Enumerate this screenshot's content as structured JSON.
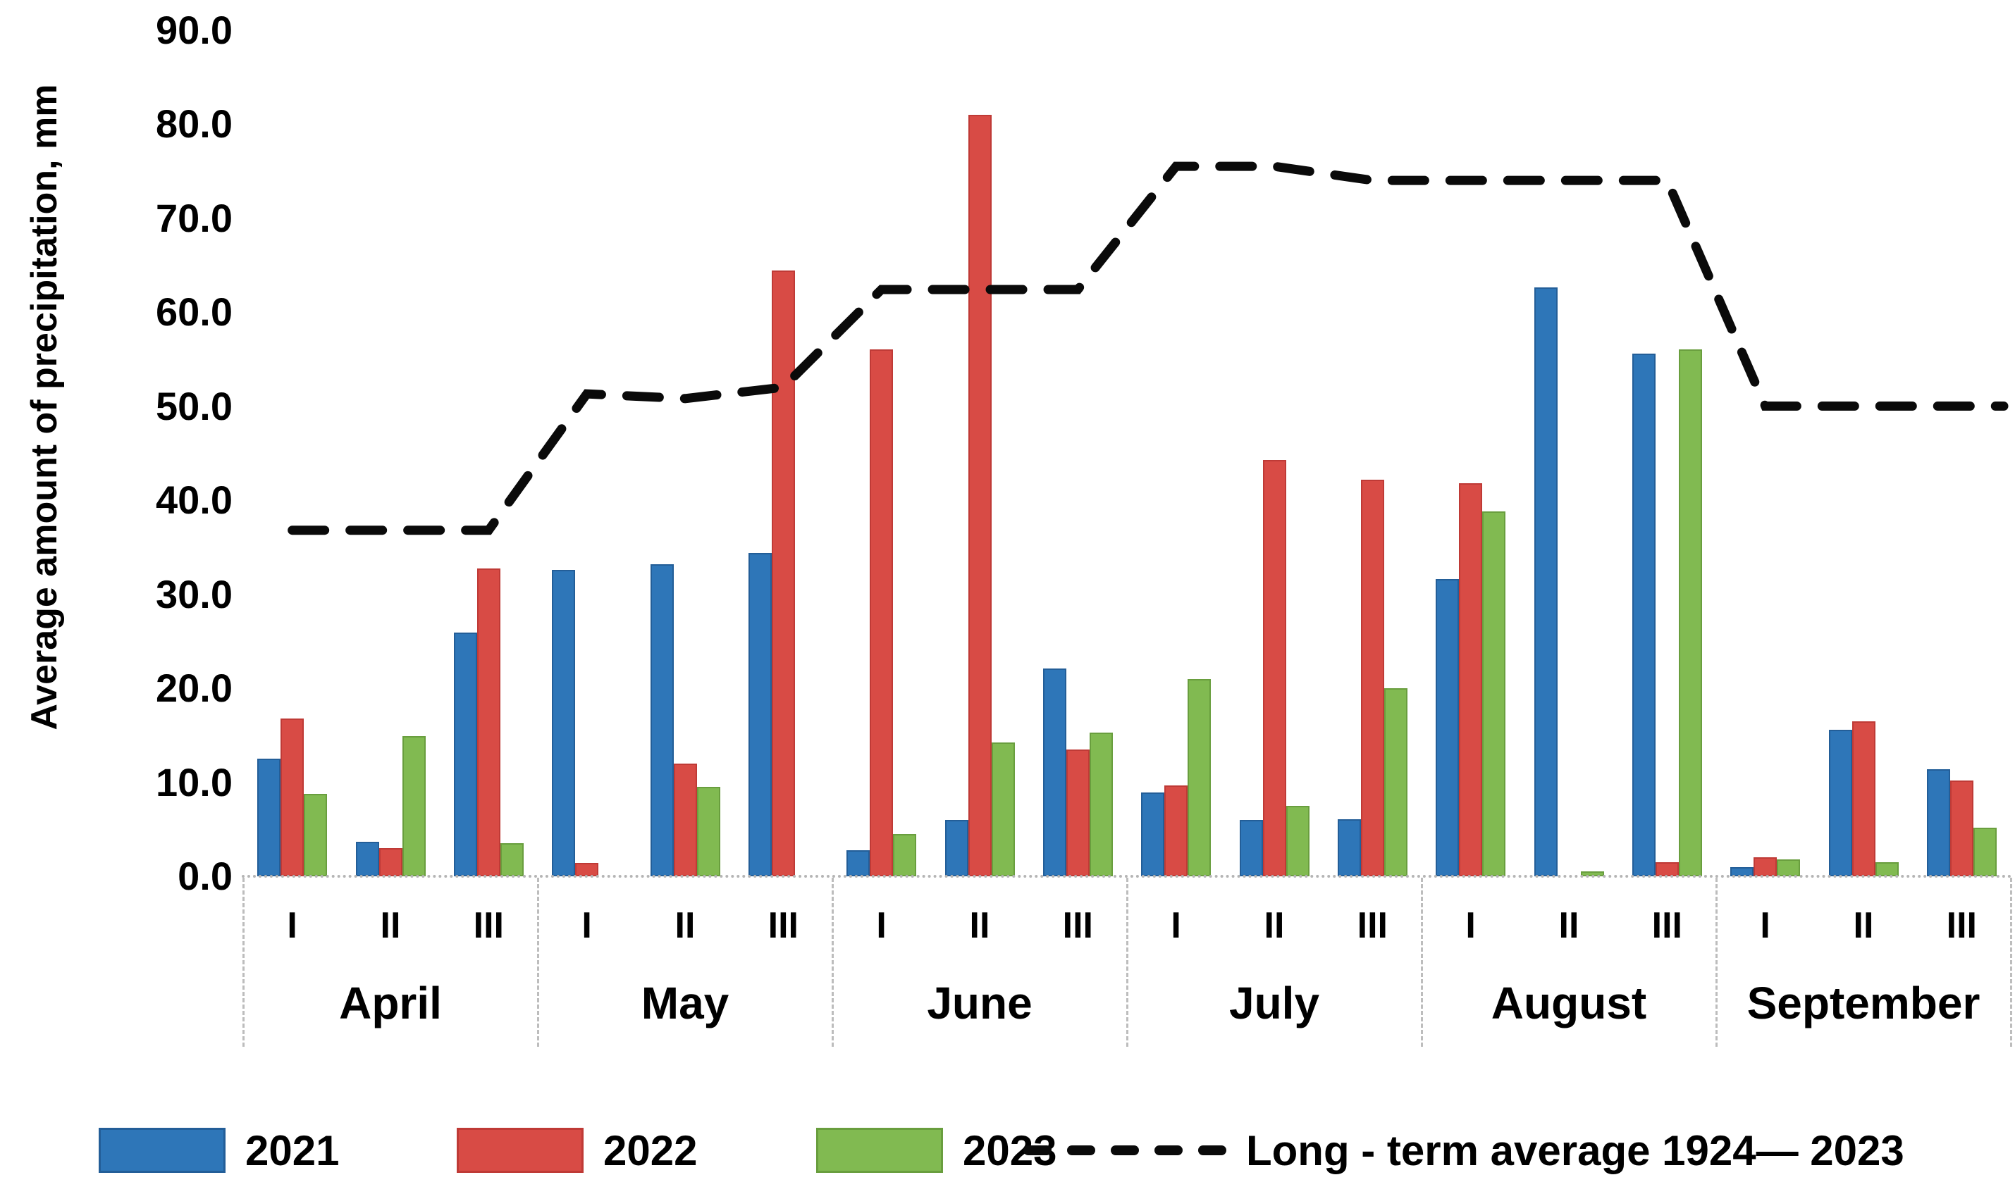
{
  "chart_data": {
    "type": "bar+line",
    "title": "",
    "ylabel": "Average amount of precipitation, mm",
    "ylim": [
      0,
      90
    ],
    "ytick_step": 10,
    "yticks": [
      "90.0",
      "80.0",
      "70.0",
      "60.0",
      "50.0",
      "40.0",
      "30.0",
      "20.0",
      "10.0",
      "0.0"
    ],
    "months": [
      "April",
      "May",
      "June",
      "July",
      "August",
      "September"
    ],
    "decades": [
      "I",
      "II",
      "III"
    ],
    "grid": false,
    "legend_position": "bottom",
    "series": [
      {
        "name": "2021",
        "color": "#2E76B8",
        "border": "#235E98",
        "values": [
          12.5,
          3.7,
          25.9,
          32.6,
          33.2,
          34.4,
          2.8,
          6.0,
          22.1,
          8.9,
          6.0,
          6.1,
          31.6,
          62.6,
          55.6,
          1.0,
          15.6,
          11.4
        ]
      },
      {
        "name": "2022",
        "color": "#D84B45",
        "border": "#BF3A36",
        "values": [
          16.8,
          3.0,
          32.7,
          1.4,
          12.0,
          64.4,
          56.0,
          81.0,
          13.5,
          9.7,
          44.3,
          42.2,
          41.8,
          0.0,
          1.5,
          2.0,
          16.5,
          10.2
        ]
      },
      {
        "name": "2023",
        "color": "#81BA51",
        "border": "#699E3E",
        "values": [
          8.8,
          14.9,
          3.5,
          0.0,
          9.5,
          0.0,
          4.5,
          14.2,
          15.3,
          21.0,
          7.5,
          20.0,
          38.8,
          0.5,
          56.0,
          1.8,
          1.5,
          5.2
        ]
      }
    ],
    "line": {
      "name": "Long - term average 1924— 2023",
      "color": "#0a0a0a",
      "values": [
        36.8,
        36.8,
        36.8,
        51.3,
        50.8,
        52.0,
        62.4,
        62.4,
        62.4,
        75.5,
        75.5,
        74.0,
        74.0,
        74.0,
        74.0,
        50.0,
        50.0,
        50.0
      ]
    }
  },
  "legend": {
    "items": [
      "2021",
      "2022",
      "2023"
    ],
    "line_label": "Long - term average 1924— 2023"
  }
}
